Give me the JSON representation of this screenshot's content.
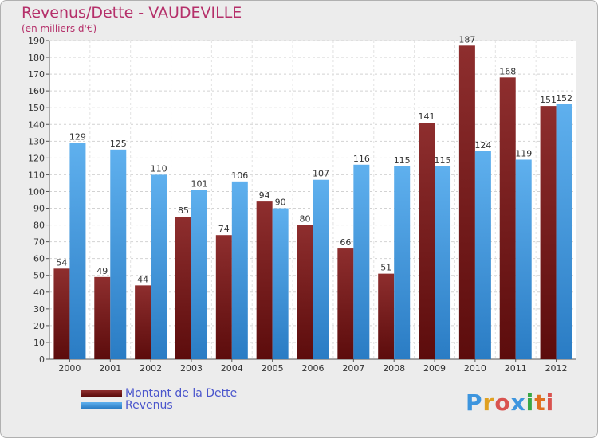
{
  "title": "Revenus/Dette - VAUDEVILLE",
  "subtitle": "(en milliers d'€)",
  "logo": "Proxiti",
  "colors": {
    "dette": "#7a1c1c",
    "revenus": "#3d95de",
    "title": "#b5306a",
    "legend_text": "#4a55cc"
  },
  "chart_data": {
    "type": "bar",
    "categories": [
      "2000",
      "2001",
      "2002",
      "2003",
      "2004",
      "2005",
      "2006",
      "2007",
      "2008",
      "2009",
      "2010",
      "2011",
      "2012"
    ],
    "series": [
      {
        "name": "Montant de la Dette",
        "values": [
          54,
          49,
          44,
          85,
          74,
          94,
          80,
          66,
          51,
          141,
          187,
          168,
          151
        ]
      },
      {
        "name": "Revenus",
        "values": [
          129,
          125,
          110,
          101,
          106,
          90,
          107,
          116,
          115,
          115,
          124,
          119,
          152
        ]
      }
    ],
    "ylim": [
      0,
      190
    ],
    "yticks": [
      0,
      10,
      20,
      30,
      40,
      50,
      60,
      70,
      80,
      90,
      100,
      110,
      120,
      130,
      140,
      150,
      160,
      170,
      180,
      190
    ],
    "grid": true,
    "legend_position": "bottom-left"
  }
}
